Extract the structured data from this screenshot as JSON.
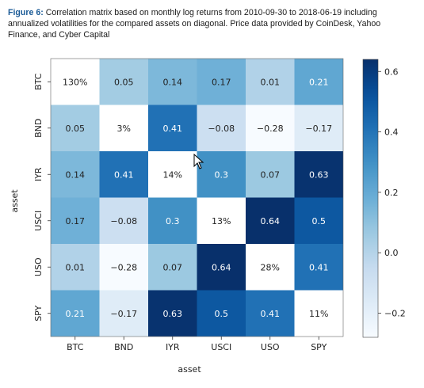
{
  "caption": {
    "label": "Figure 6:",
    "text": "Correlation matrix based on monthly log returns from 2010-09-30 to 2018-06-19 including annualized volatilities for the compared assets on diagonal. Price data provided by CoinDesk, Yahoo Finance, and Cyber Capital"
  },
  "chart_data": {
    "type": "heatmap",
    "xlabel": "asset",
    "ylabel": "asset",
    "categories": [
      "BTC",
      "BND",
      "IYR",
      "USCI",
      "USO",
      "SPY"
    ],
    "values": [
      [
        null,
        0.05,
        0.14,
        0.17,
        0.01,
        0.21
      ],
      [
        0.05,
        null,
        0.41,
        -0.08,
        -0.28,
        -0.17
      ],
      [
        0.14,
        0.41,
        null,
        0.3,
        0.07,
        0.63
      ],
      [
        0.17,
        -0.08,
        0.3,
        null,
        0.64,
        0.5
      ],
      [
        0.01,
        -0.28,
        0.07,
        0.64,
        null,
        0.41
      ],
      [
        0.21,
        -0.17,
        0.63,
        0.5,
        0.41,
        null
      ]
    ],
    "labels": [
      [
        "130%",
        "0.05",
        "0.14",
        "0.17",
        "0.01",
        "0.21"
      ],
      [
        "0.05",
        "3%",
        "0.41",
        "−0.08",
        "−0.28",
        "−0.17"
      ],
      [
        "0.14",
        "0.41",
        "14%",
        "0.3",
        "0.07",
        "0.63"
      ],
      [
        "0.17",
        "−0.08",
        "0.3",
        "13%",
        "0.64",
        "0.5"
      ],
      [
        "0.01",
        "−0.28",
        "0.07",
        "0.64",
        "28%",
        "0.41"
      ],
      [
        "0.21",
        "−0.17",
        "0.63",
        "0.5",
        "0.41",
        "11%"
      ]
    ],
    "colorbar": {
      "min": -0.28,
      "max": 0.64,
      "ticks": [
        0.6,
        0.4,
        0.2,
        0.0,
        -0.2
      ],
      "tick_labels": [
        "0.6",
        "0.4",
        "0.2",
        "0.0",
        "−0.2"
      ],
      "colormap": "Blues"
    }
  }
}
